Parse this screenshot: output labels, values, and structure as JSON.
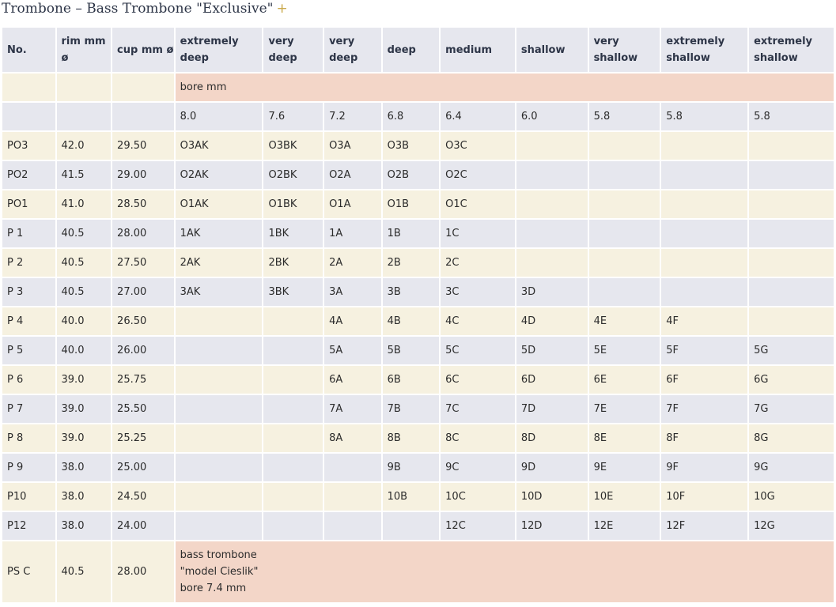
{
  "title": "Trombone – Bass Trombone \"Exclusive\"",
  "title_plus": "+",
  "headers": [
    "No.",
    "rim mm ø",
    "cup mm ø",
    "extremely deep",
    "very deep",
    "very deep",
    "deep",
    "medium",
    "shallow",
    "very shallow",
    "extremely shallow",
    "extremely shallow"
  ],
  "bore_label": "bore mm",
  "bore_values": [
    "8.0",
    "7.6",
    "7.2",
    "6.8",
    "6.4",
    "6.0",
    "5.8",
    "5.8",
    "5.8"
  ],
  "rows": [
    {
      "no": "PO3",
      "rim": "42.0",
      "cup": "29.50",
      "cells": [
        "O3AK",
        "O3BK",
        "O3A",
        "O3B",
        "O3C",
        "",
        "",
        "",
        ""
      ]
    },
    {
      "no": "PO2",
      "rim": "41.5",
      "cup": "29.00",
      "cells": [
        "O2AK",
        "O2BK",
        "O2A",
        "O2B",
        "O2C",
        "",
        "",
        "",
        ""
      ]
    },
    {
      "no": "PO1",
      "rim": "41.0",
      "cup": "28.50",
      "cells": [
        "O1AK",
        "O1BK",
        "O1A",
        "O1B",
        "O1C",
        "",
        "",
        "",
        ""
      ]
    },
    {
      "no": "P 1",
      "rim": "40.5",
      "cup": "28.00",
      "cells": [
        "1AK",
        "1BK",
        "1A",
        "1B",
        "1C",
        "",
        "",
        "",
        ""
      ]
    },
    {
      "no": "P 2",
      "rim": "40.5",
      "cup": "27.50",
      "cells": [
        "2AK",
        "2BK",
        "2A",
        "2B",
        "2C",
        "",
        "",
        "",
        ""
      ]
    },
    {
      "no": "P 3",
      "rim": "40.5",
      "cup": "27.00",
      "cells": [
        "3AK",
        "3BK",
        "3A",
        "3B",
        "3C",
        "3D",
        "",
        "",
        ""
      ]
    },
    {
      "no": "P 4",
      "rim": "40.0",
      "cup": "26.50",
      "cells": [
        "",
        "",
        "4A",
        "4B",
        "4C",
        "4D",
        "4E",
        "4F",
        ""
      ]
    },
    {
      "no": "P 5",
      "rim": "40.0",
      "cup": "26.00",
      "cells": [
        "",
        "",
        "5A",
        "5B",
        "5C",
        "5D",
        "5E",
        "5F",
        "5G"
      ]
    },
    {
      "no": "P 6",
      "rim": "39.0",
      "cup": "25.75",
      "cells": [
        "",
        "",
        "6A",
        "6B",
        "6C",
        "6D",
        "6E",
        "6F",
        "6G"
      ]
    },
    {
      "no": "P 7",
      "rim": "39.0",
      "cup": "25.50",
      "cells": [
        "",
        "",
        "7A",
        "7B",
        "7C",
        "7D",
        "7E",
        "7F",
        "7G"
      ]
    },
    {
      "no": "P 8",
      "rim": "39.0",
      "cup": "25.25",
      "cells": [
        "",
        "",
        "8A",
        "8B",
        "8C",
        "8D",
        "8E",
        "8F",
        "8G"
      ]
    },
    {
      "no": "P 9",
      "rim": "38.0",
      "cup": "25.00",
      "cells": [
        "",
        "",
        "",
        "9B",
        "9C",
        "9D",
        "9E",
        "9F",
        "9G"
      ]
    },
    {
      "no": "P10",
      "rim": "38.0",
      "cup": "24.50",
      "cells": [
        "",
        "",
        "",
        "10B",
        "10C",
        "10D",
        "10E",
        "10F",
        "10G"
      ]
    },
    {
      "no": "P12",
      "rim": "38.0",
      "cup": "24.00",
      "cells": [
        "",
        "",
        "",
        "",
        "12C",
        "12D",
        "12E",
        "12F",
        "12G"
      ]
    }
  ],
  "last_row": {
    "no": "PS C",
    "rim": "40.5",
    "cup": "28.00",
    "note_lines": [
      "bass trombone",
      "\"model Cieslik\"",
      "bore 7.4 mm"
    ]
  },
  "colors": {
    "header_bg": "#e6e7ee",
    "cream_bg": "#f6f1e0",
    "banner_bg": "#f3d6c8",
    "plus": "#c9a84a"
  }
}
